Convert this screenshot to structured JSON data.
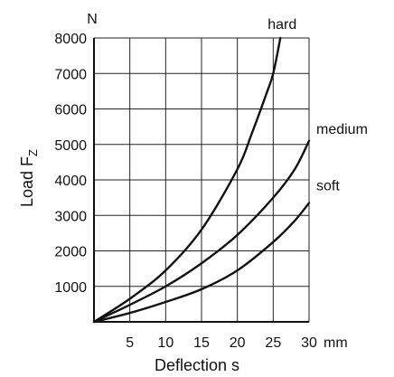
{
  "chart_data": {
    "type": "line",
    "title": "",
    "xlabel": "Deflection s",
    "ylabel_main": "Load F",
    "ylabel_sub": "Z",
    "x_unit": "mm",
    "y_unit": "N",
    "xlim": [
      0,
      30
    ],
    "ylim": [
      0,
      8000
    ],
    "x_ticks": [
      5,
      10,
      15,
      20,
      25,
      30
    ],
    "y_ticks": [
      1000,
      2000,
      3000,
      4000,
      5000,
      6000,
      7000,
      8000
    ],
    "x_tick_labels": [
      "5",
      "10",
      "15",
      "20",
      "25",
      "30"
    ],
    "y_tick_labels": [
      "1000",
      "2000",
      "3000",
      "4000",
      "5000",
      "6000",
      "7000",
      "8000"
    ],
    "grid": true,
    "series": [
      {
        "name": "hard",
        "points": [
          [
            0,
            0
          ],
          [
            5,
            650
          ],
          [
            10,
            1450
          ],
          [
            15,
            2600
          ],
          [
            20,
            4300
          ],
          [
            22,
            5300
          ],
          [
            24,
            6400
          ],
          [
            25,
            7000
          ],
          [
            26,
            8000
          ]
        ]
      },
      {
        "name": "medium",
        "points": [
          [
            0,
            0
          ],
          [
            5,
            480
          ],
          [
            10,
            1000
          ],
          [
            15,
            1650
          ],
          [
            20,
            2450
          ],
          [
            25,
            3500
          ],
          [
            28,
            4300
          ],
          [
            30,
            5100
          ]
        ]
      },
      {
        "name": "soft",
        "points": [
          [
            0,
            0
          ],
          [
            5,
            250
          ],
          [
            10,
            560
          ],
          [
            15,
            920
          ],
          [
            20,
            1450
          ],
          [
            25,
            2250
          ],
          [
            28,
            2850
          ],
          [
            30,
            3350
          ]
        ]
      }
    ],
    "colors": {
      "line": "#111111",
      "grid": "#222222",
      "background": "#ffffff"
    }
  }
}
